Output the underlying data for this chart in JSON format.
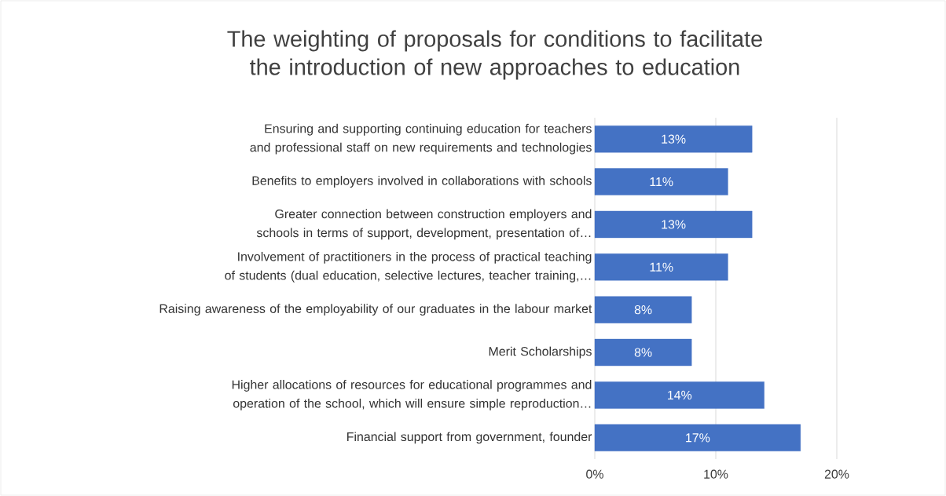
{
  "chart_data": {
    "type": "bar",
    "orientation": "horizontal",
    "title": "The weighting of proposals for conditions to facilitate the introduction of new approaches to education",
    "categories": [
      "Ensuring and supporting continuing education for teachers and professional staff on new requirements and technologies",
      "Benefits to employers involved in collaborations with schools",
      "Greater connection between construction employers and schools in terms of support, development, presentation of…",
      "Involvement of practitioners in the process of practical teaching of students (dual education, selective lectures, teacher training,…",
      "Raising awareness of the employability of our graduates in the labour market",
      "Merit Scholarships",
      "Higher allocations of resources for educational programmes and operation of the school, which will ensure simple reproduction…",
      "Financial support from government, founder"
    ],
    "values": [
      13,
      11,
      13,
      11,
      8,
      8,
      14,
      17
    ],
    "value_labels": [
      "13%",
      "11%",
      "13%",
      "11%",
      "8%",
      "8%",
      "14%",
      "17%"
    ],
    "color": "#4472c4",
    "xlim": [
      0,
      20
    ],
    "xticks": [
      {
        "value": 0,
        "label": "0%"
      },
      {
        "value": 10,
        "label": "10%"
      },
      {
        "value": 20,
        "label": "20%"
      }
    ],
    "grid": "x"
  }
}
